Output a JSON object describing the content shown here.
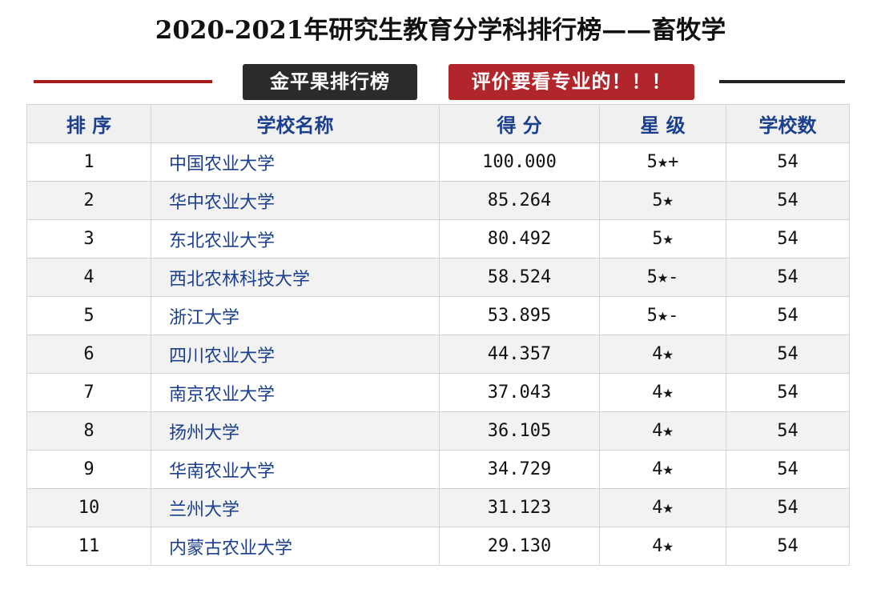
{
  "header": {
    "title": "2020-2021年研究生教育分学科排行榜——畜牧学",
    "badge_left": "金平果排行榜",
    "badge_right": "评价要看专业的！！！"
  },
  "table": {
    "columns": [
      "排 序",
      "学校名称",
      "得 分",
      "星 级",
      "学校数"
    ],
    "rows": [
      [
        "1",
        "中国农业大学",
        "100.000",
        "5★+",
        "54"
      ],
      [
        "2",
        "华中农业大学",
        "85.264",
        "5★",
        "54"
      ],
      [
        "3",
        "东北农业大学",
        "80.492",
        "5★",
        "54"
      ],
      [
        "4",
        "西北农林科技大学",
        "58.524",
        "5★-",
        "54"
      ],
      [
        "5",
        "浙江大学",
        "53.895",
        "5★-",
        "54"
      ],
      [
        "6",
        "四川农业大学",
        "44.357",
        "4★",
        "54"
      ],
      [
        "7",
        "南京农业大学",
        "37.043",
        "4★",
        "54"
      ],
      [
        "8",
        "扬州大学",
        "36.105",
        "4★",
        "54"
      ],
      [
        "9",
        "华南农业大学",
        "34.729",
        "4★",
        "54"
      ],
      [
        "10",
        "兰州大学",
        "31.123",
        "4★",
        "54"
      ],
      [
        "11",
        "内蒙古农业大学",
        "29.130",
        "4★",
        "54"
      ]
    ]
  }
}
